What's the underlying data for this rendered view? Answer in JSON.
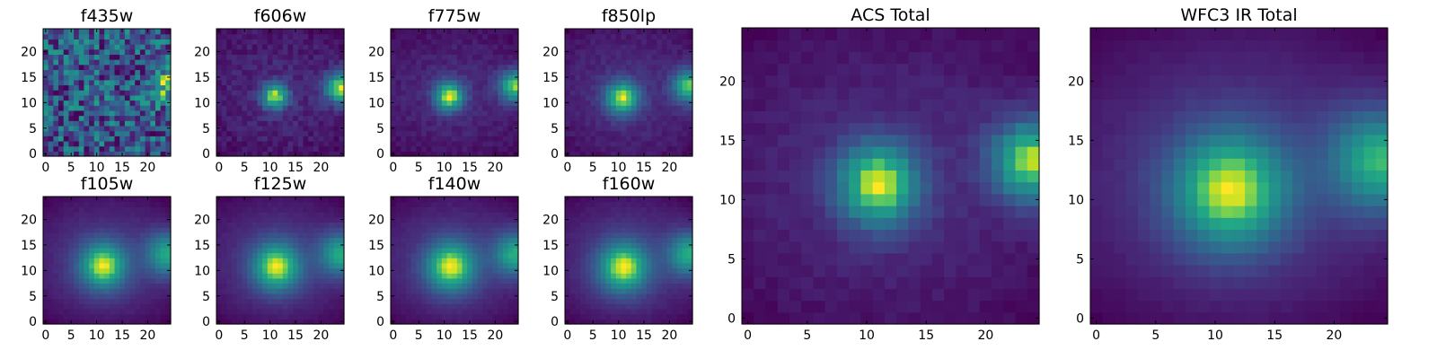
{
  "chart_data": [
    {
      "type": "heatmap",
      "title": "f435w",
      "model": "noise",
      "sources": [
        {
          "x": 12,
          "y": 12,
          "amp": 0.05,
          "sigma": 2.5
        },
        {
          "x": 25,
          "y": 14,
          "amp": 0.35,
          "sigma": 2.5
        }
      ],
      "background": 0.55,
      "gradient": 0.0,
      "noise": 0.28,
      "seed": 11,
      "xlim": [
        0,
        25
      ],
      "ylim": [
        0,
        25
      ],
      "xticks": [
        0,
        5,
        10,
        15,
        20
      ],
      "yticks": [
        0,
        5,
        10,
        15,
        20
      ],
      "colormap": "viridis"
    },
    {
      "type": "heatmap",
      "title": "f606w",
      "model": "sources",
      "sources": [
        {
          "x": 11.5,
          "y": 11.8,
          "amp": 0.85,
          "sigma": 1.8
        },
        {
          "x": 24.5,
          "y": 13.5,
          "amp": 0.9,
          "sigma": 2.2
        }
      ],
      "background": 0.3,
      "gradient": 0.1,
      "noise": 0.07,
      "seed": 23,
      "xlim": [
        0,
        25
      ],
      "ylim": [
        0,
        25
      ],
      "xticks": [
        0,
        5,
        10,
        15,
        20
      ],
      "yticks": [
        0,
        5,
        10,
        15,
        20
      ],
      "colormap": "viridis"
    },
    {
      "type": "heatmap",
      "title": "f775w",
      "model": "sources",
      "sources": [
        {
          "x": 11.5,
          "y": 11.8,
          "amp": 0.95,
          "sigma": 2.0
        },
        {
          "x": 24.5,
          "y": 13.8,
          "amp": 0.9,
          "sigma": 2.2
        }
      ],
      "background": 0.25,
      "gradient": 0.12,
      "noise": 0.05,
      "seed": 37,
      "xlim": [
        0,
        25
      ],
      "ylim": [
        0,
        25
      ],
      "xticks": [
        0,
        5,
        10,
        15,
        20
      ],
      "yticks": [
        0,
        5,
        10,
        15,
        20
      ],
      "colormap": "viridis"
    },
    {
      "type": "heatmap",
      "title": "f850lp",
      "model": "sources",
      "sources": [
        {
          "x": 11.3,
          "y": 11.5,
          "amp": 1.0,
          "sigma": 2.3
        },
        {
          "x": 24.5,
          "y": 13.8,
          "amp": 0.95,
          "sigma": 2.3
        }
      ],
      "background": 0.22,
      "gradient": 0.14,
      "noise": 0.05,
      "seed": 41,
      "xlim": [
        0,
        25
      ],
      "ylim": [
        0,
        25
      ],
      "xticks": [
        0,
        5,
        10,
        15,
        20
      ],
      "yticks": [
        0,
        5,
        10,
        15,
        20
      ],
      "colormap": "viridis"
    },
    {
      "type": "heatmap",
      "title": "f105w",
      "model": "sources",
      "sources": [
        {
          "x": 11.8,
          "y": 11.5,
          "amp": 1.0,
          "sigma": 3.2
        },
        {
          "x": 24.5,
          "y": 13.8,
          "amp": 0.8,
          "sigma": 3.0
        }
      ],
      "background": 0.15,
      "gradient": 0.2,
      "noise": 0.02,
      "seed": 53,
      "xlim": [
        0,
        25
      ],
      "ylim": [
        0,
        25
      ],
      "xticks": [
        0,
        5,
        10,
        15,
        20
      ],
      "yticks": [
        0,
        5,
        10,
        15,
        20
      ],
      "colormap": "viridis"
    },
    {
      "type": "heatmap",
      "title": "f125w",
      "model": "sources",
      "sources": [
        {
          "x": 11.8,
          "y": 11.3,
          "amp": 1.0,
          "sigma": 3.3
        },
        {
          "x": 24.5,
          "y": 13.8,
          "amp": 0.8,
          "sigma": 3.0
        }
      ],
      "background": 0.15,
      "gradient": 0.2,
      "noise": 0.02,
      "seed": 59,
      "xlim": [
        0,
        25
      ],
      "ylim": [
        0,
        25
      ],
      "xticks": [
        0,
        5,
        10,
        15,
        20
      ],
      "yticks": [
        0,
        5,
        10,
        15,
        20
      ],
      "colormap": "viridis"
    },
    {
      "type": "heatmap",
      "title": "f140w",
      "model": "sources",
      "sources": [
        {
          "x": 11.8,
          "y": 11.3,
          "amp": 1.0,
          "sigma": 3.4
        },
        {
          "x": 24.5,
          "y": 13.8,
          "amp": 0.8,
          "sigma": 3.0
        }
      ],
      "background": 0.15,
      "gradient": 0.2,
      "noise": 0.02,
      "seed": 61,
      "xlim": [
        0,
        25
      ],
      "ylim": [
        0,
        25
      ],
      "xticks": [
        0,
        5,
        10,
        15,
        20
      ],
      "yticks": [
        0,
        5,
        10,
        15,
        20
      ],
      "colormap": "viridis"
    },
    {
      "type": "heatmap",
      "title": "f160w",
      "model": "sources",
      "sources": [
        {
          "x": 11.5,
          "y": 11.2,
          "amp": 1.0,
          "sigma": 3.4
        },
        {
          "x": 24.5,
          "y": 13.8,
          "amp": 0.8,
          "sigma": 3.0
        }
      ],
      "background": 0.15,
      "gradient": 0.2,
      "noise": 0.02,
      "seed": 67,
      "xlim": [
        0,
        25
      ],
      "ylim": [
        0,
        25
      ],
      "xticks": [
        0,
        5,
        10,
        15,
        20
      ],
      "yticks": [
        0,
        5,
        10,
        15,
        20
      ],
      "colormap": "viridis"
    },
    {
      "type": "heatmap",
      "title": "ACS Total",
      "model": "sources",
      "sources": [
        {
          "x": 11.5,
          "y": 11.8,
          "amp": 1.0,
          "sigma": 2.4
        },
        {
          "x": 24.5,
          "y": 13.8,
          "amp": 1.0,
          "sigma": 2.4
        }
      ],
      "background": 0.25,
      "gradient": 0.14,
      "noise": 0.04,
      "seed": 71,
      "xlim": [
        0,
        25
      ],
      "ylim": [
        0,
        25
      ],
      "xticks": [
        0,
        5,
        10,
        15,
        20
      ],
      "yticks": [
        0,
        5,
        10,
        15,
        20
      ],
      "colormap": "viridis"
    },
    {
      "type": "heatmap",
      "title": "WFC3 IR Total",
      "model": "sources",
      "sources": [
        {
          "x": 11.8,
          "y": 11.3,
          "amp": 1.0,
          "sigma": 3.4
        },
        {
          "x": 24.5,
          "y": 13.8,
          "amp": 0.85,
          "sigma": 3.0
        }
      ],
      "background": 0.15,
      "gradient": 0.2,
      "noise": 0.015,
      "seed": 83,
      "xlim": [
        0,
        25
      ],
      "ylim": [
        0,
        25
      ],
      "xticks": [
        0,
        5,
        10,
        15,
        20
      ],
      "yticks": [
        0,
        5,
        10,
        15,
        20
      ],
      "colormap": "viridis"
    }
  ]
}
